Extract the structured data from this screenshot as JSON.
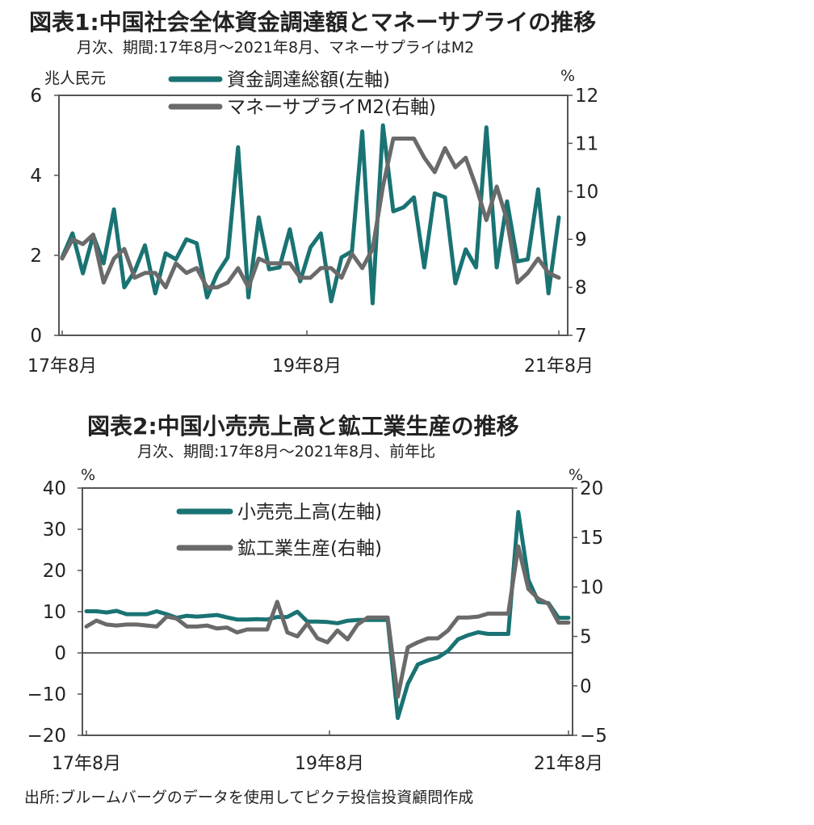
{
  "chart_data": [
    {
      "type": "line",
      "title": "図表1:中国社会全体資金調達額とマネーサプライの推移",
      "subtitle": "月次、期間:17年8月～2021年8月、マネーサプライはM2",
      "left_unit": "兆人民元",
      "right_unit": "%",
      "ylim_left": [
        0,
        6
      ],
      "ylim_right": [
        7,
        12
      ],
      "yticks_left": [
        "0",
        "2",
        "4",
        "6"
      ],
      "yticks_right": [
        "7",
        "8",
        "9",
        "10",
        "11",
        "12"
      ],
      "xticks": [
        "17年8月",
        "19年8月",
        "21年8月"
      ],
      "legend_position": "top-center",
      "series": [
        {
          "name": "資金調達総額(左軸)",
          "axis": "left",
          "color": "#1a7373",
          "values": [
            1.95,
            2.55,
            1.55,
            2.5,
            1.8,
            3.15,
            1.2,
            1.6,
            2.25,
            1.05,
            2.05,
            1.9,
            2.4,
            2.3,
            0.95,
            1.55,
            1.95,
            4.7,
            0.95,
            2.95,
            1.65,
            1.7,
            2.65,
            1.35,
            2.2,
            2.55,
            0.85,
            1.95,
            2.1,
            5.1,
            0.8,
            5.25,
            3.1,
            3.2,
            3.45,
            1.7,
            3.55,
            3.45,
            1.3,
            2.15,
            1.7,
            5.2,
            1.7,
            3.35,
            1.85,
            1.9,
            3.65,
            1.05,
            2.95
          ]
        },
        {
          "name": "マネーサプライM2(右軸)",
          "axis": "right",
          "color": "#6a6a6a",
          "values": [
            8.6,
            9.0,
            8.9,
            9.1,
            8.1,
            8.6,
            8.8,
            8.2,
            8.3,
            8.3,
            8.0,
            8.5,
            8.3,
            8.4,
            8.0,
            8.0,
            8.1,
            8.4,
            8.0,
            8.6,
            8.5,
            8.5,
            8.5,
            8.2,
            8.2,
            8.4,
            8.4,
            8.2,
            8.7,
            8.4,
            8.8,
            10.1,
            11.1,
            11.1,
            11.1,
            10.7,
            10.4,
            10.9,
            10.5,
            10.7,
            10.1,
            9.4,
            10.1,
            9.4,
            8.1,
            8.3,
            8.6,
            8.3,
            8.2
          ]
        }
      ]
    },
    {
      "type": "line",
      "title": "図表2:中国小売売上高と鉱工業生産の推移",
      "subtitle": "月次、期間:17年8月～2021年8月、前年比",
      "left_unit": "%",
      "right_unit": "%",
      "ylim_left": [
        -20,
        40
      ],
      "ylim_right": [
        -5,
        20
      ],
      "yticks_left": [
        "−20",
        "−10",
        "0",
        "10",
        "20",
        "30",
        "40"
      ],
      "yticks_right": [
        "−5",
        "0",
        "5",
        "10",
        "15",
        "20"
      ],
      "xticks": [
        "17年8月",
        "19年8月",
        "21年8月"
      ],
      "legend_position": "top-center",
      "series": [
        {
          "name": "小売売上高(左軸)",
          "axis": "left",
          "color": "#1a7373",
          "values": [
            10.1,
            10.1,
            9.8,
            10.2,
            9.4,
            9.4,
            9.4,
            10.1,
            9.4,
            8.5,
            9.0,
            8.8,
            9.0,
            9.2,
            8.6,
            8.1,
            8.1,
            8.2,
            8.1,
            8.7,
            8.7,
            10.0,
            7.6,
            7.6,
            7.5,
            7.2,
            7.8,
            8.0,
            8.0,
            8.0,
            8.0,
            -15.8,
            -7.5,
            -2.8,
            -1.8,
            -1.1,
            0.5,
            3.3,
            4.3,
            5.0,
            4.6,
            4.6,
            4.6,
            34.2,
            17.7,
            12.4,
            12.1,
            8.5,
            8.5
          ]
        },
        {
          "name": "鉱工業生産(右軸)",
          "axis": "right",
          "color": "#6a6a6a",
          "values": [
            6.0,
            6.6,
            6.2,
            6.1,
            6.2,
            6.2,
            6.1,
            6.0,
            7.0,
            6.8,
            6.0,
            6.0,
            6.1,
            5.8,
            5.9,
            5.4,
            5.7,
            5.7,
            5.7,
            8.5,
            5.4,
            5.0,
            6.3,
            4.8,
            4.4,
            5.6,
            4.7,
            6.2,
            6.9,
            6.9,
            6.9,
            -1.1,
            3.9,
            4.4,
            4.8,
            4.8,
            5.6,
            6.9,
            6.9,
            7.0,
            7.3,
            7.3,
            7.3,
            14.1,
            9.8,
            8.8,
            8.3,
            6.4,
            6.4
          ]
        }
      ]
    }
  ],
  "source": "出所:ブルームバーグのデータを使用してピクテ投信投資顧問作成"
}
